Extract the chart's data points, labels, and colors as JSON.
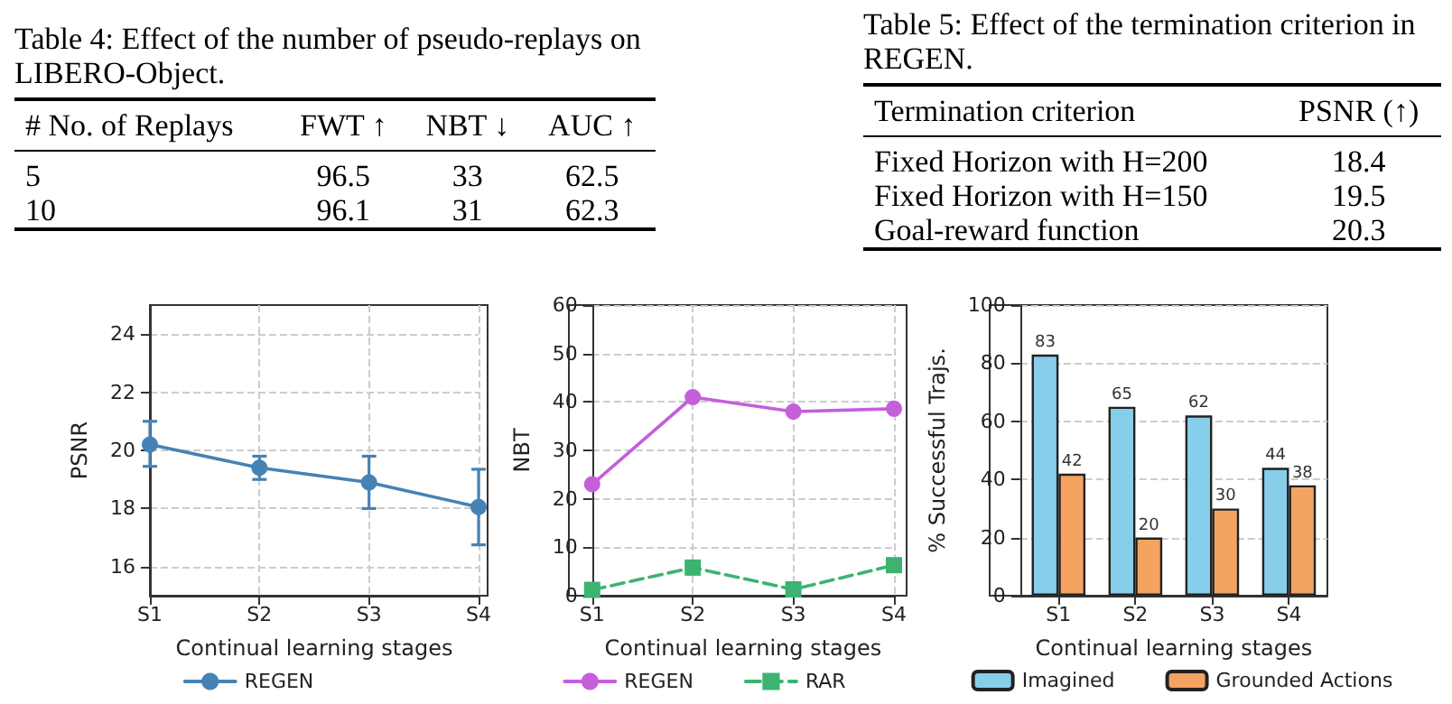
{
  "chart_data": [
    {
      "type": "other",
      "title": "Table 4: Effect of the number of pseudo-replays on LIBERO-Object.",
      "categories": [
        "# No. of Replays",
        "FWT ↑",
        "NBT ↓",
        "AUC ↑"
      ],
      "y_categories": [
        "5",
        "10"
      ],
      "cell_labels": [
        [
          "96.5",
          "33",
          "62.5"
        ],
        [
          "96.1",
          "31",
          "62.3"
        ]
      ]
    },
    {
      "type": "other",
      "title": "Table 5: Effect of the termination criterion in REGEN.",
      "categories": [
        "Termination criterion",
        "PSNR (↑)"
      ],
      "y_categories": [
        "Fixed Horizon with H=200",
        "Fixed Horizon with H=150",
        "Goal-reward function"
      ],
      "cell_labels": [
        [
          "18.4"
        ],
        [
          "19.5"
        ],
        [
          "20.3"
        ]
      ]
    },
    {
      "type": "line",
      "xlabel": "Continual learning stages",
      "ylabel": "PSNR",
      "categories": [
        "S1",
        "S2",
        "S3",
        "S4"
      ],
      "ylim": [
        15,
        25
      ],
      "yticks": [
        16,
        18,
        20,
        22,
        24
      ],
      "grid": true,
      "legend": "bottom",
      "marker": "circle",
      "line_style": "solid",
      "series": [
        {
          "name": "REGEN",
          "color": "#4682b4",
          "values": [
            20.2,
            19.4,
            18.9,
            18.05
          ],
          "errors": [
            [
              19.45,
              21.0
            ],
            [
              19.0,
              19.8
            ],
            [
              18.0,
              19.8
            ],
            [
              16.75,
              19.35
            ]
          ]
        }
      ]
    },
    {
      "type": "line",
      "xlabel": "Continual learning stages",
      "ylabel": "NBT",
      "categories": [
        "S1",
        "S2",
        "S3",
        "S4"
      ],
      "ylim": [
        0,
        60
      ],
      "yticks": [
        0,
        10,
        20,
        30,
        40,
        50,
        60
      ],
      "grid": true,
      "legend": "bottom",
      "series": [
        {
          "name": "REGEN",
          "color": "#c45fdc",
          "values": [
            23,
            41,
            38,
            38.6
          ],
          "marker": "circle",
          "line_style": "solid"
        },
        {
          "name": "RAR",
          "color": "#3cb371",
          "values": [
            1.2,
            5.8,
            1.3,
            6.3
          ],
          "marker": "square",
          "line_style": "dashed"
        }
      ]
    },
    {
      "type": "bar",
      "xlabel": "Continual learning stages",
      "ylabel": "% Successful Trajs.",
      "categories": [
        "S1",
        "S2",
        "S3",
        "S4"
      ],
      "ylim": [
        0,
        100
      ],
      "yticks": [
        0,
        20,
        40,
        60,
        80,
        100
      ],
      "grid": "y",
      "legend": "bottom",
      "data_labels": true,
      "series": [
        {
          "name": "Imagined",
          "color": "#87ceeb",
          "values": [
            83,
            65,
            62,
            44
          ]
        },
        {
          "name": "Grounded Actions",
          "color": "#f4a460",
          "values": [
            42,
            20,
            30,
            38
          ]
        }
      ]
    }
  ]
}
